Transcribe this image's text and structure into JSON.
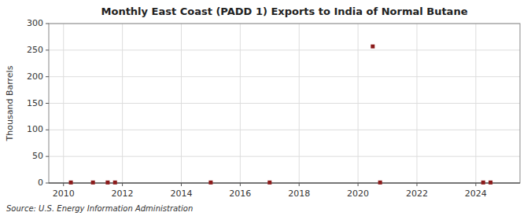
{
  "chart_data": {
    "type": "scatter",
    "title": "Monthly East Coast (PADD 1) Exports to India of Normal Butane",
    "ylabel": "Thousand Barrels",
    "source": "Source: U.S. Energy Information Administration",
    "x": [
      2010.25,
      2011.0,
      2011.5,
      2011.75,
      2015.0,
      2017.0,
      2020.5,
      2020.75,
      2024.25,
      2024.5
    ],
    "values": [
      1,
      1,
      1,
      1,
      1,
      1,
      257,
      1,
      1,
      1
    ],
    "color": "#8b1a1a",
    "marker": "square",
    "xlim": [
      2009.5,
      2025.5
    ],
    "xticks": [
      2010,
      2012,
      2014,
      2016,
      2018,
      2020,
      2022,
      2024
    ],
    "ylim": [
      0,
      300
    ],
    "yticks": [
      0,
      50,
      100,
      150,
      200,
      250,
      300
    ],
    "grid": true
  }
}
